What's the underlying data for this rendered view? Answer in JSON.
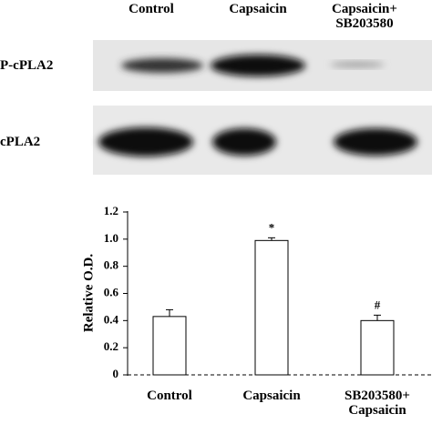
{
  "blot": {
    "column_labels": [
      "Control",
      "Capsaicin",
      "Capsaicin+\nSB203580"
    ],
    "row_labels": [
      "P-cPLA2",
      "cPLA2"
    ]
  },
  "chart_data": {
    "type": "bar",
    "y_label": "Relative O.D.",
    "categories": [
      "Control",
      "Capsaicin",
      "SB203580+\nCapsaicin"
    ],
    "values": [
      0.43,
      0.99,
      0.4
    ],
    "errors": [
      0.05,
      0.02,
      0.04
    ],
    "annotations": [
      null,
      "*",
      "#"
    ],
    "color": "#ffffff",
    "ylim": [
      0,
      1.2
    ],
    "yticks": [
      0,
      0.2,
      0.4,
      0.6,
      0.8,
      {
        "value": 1,
        "label": "1.0"
      },
      1.2
    ]
  }
}
